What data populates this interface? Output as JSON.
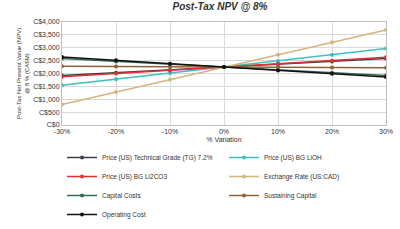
{
  "chart_data": {
    "type": "line",
    "title": "Post-Tax NPV @ 8%",
    "x_label": "% Variation",
    "y_label": "Post-Tax Net Present Value (NPV) @ 8 % (CA$M)",
    "x": [
      -30,
      -20,
      -10,
      0,
      10,
      20,
      30
    ],
    "xlim": [
      -30,
      30
    ],
    "xticks": [
      {
        "value": -30,
        "label": "-30%"
      },
      {
        "value": -20,
        "label": "-20%"
      },
      {
        "value": -10,
        "label": "-10%"
      },
      {
        "value": 0,
        "label": "0%"
      },
      {
        "value": 10,
        "label": "10%"
      },
      {
        "value": 20,
        "label": "20%"
      },
      {
        "value": 30,
        "label": "30%"
      }
    ],
    "ylim": [
      0,
      4000
    ],
    "yticks": [
      {
        "value": 0,
        "label": "C$0"
      },
      {
        "value": 500,
        "label": "C$500"
      },
      {
        "value": 1000,
        "label": "C$1,000"
      },
      {
        "value": 1500,
        "label": "C$1,500"
      },
      {
        "value": 2000,
        "label": "C$2,000"
      },
      {
        "value": 2500,
        "label": "C$2,500"
      },
      {
        "value": 3000,
        "label": "C$3,000"
      },
      {
        "value": 3500,
        "label": "C$3,500"
      },
      {
        "value": 4000,
        "label": "C$4,000"
      }
    ],
    "grid": true,
    "legend": "bottom",
    "marker": "circle",
    "series": [
      {
        "name": "Price (US) Technical Grade (TG) 7.2%",
        "color": "#3a3f4a",
        "values": [
          1920,
          2030,
          2140,
          2250,
          2360,
          2470,
          2580
        ]
      },
      {
        "name": "Price (US) BG LiOH",
        "color": "#3cbfbf",
        "values": [
          1540,
          1780,
          2010,
          2250,
          2490,
          2730,
          2970
        ]
      },
      {
        "name": "Price (US) BG Li2CO3",
        "color": "#e0302f",
        "values": [
          1870,
          2000,
          2120,
          2250,
          2380,
          2500,
          2630
        ]
      },
      {
        "name": "Exchange Rate (US:CAD)",
        "color": "#d7b27a",
        "values": [
          800,
          1280,
          1770,
          2250,
          2730,
          3210,
          3690
        ]
      },
      {
        "name": "Capital Costs",
        "color": "#2f6b5e",
        "values": [
          2580,
          2470,
          2360,
          2250,
          2140,
          2030,
          1920
        ]
      },
      {
        "name": "Sustaining Capital",
        "color": "#8b6239",
        "values": [
          2280,
          2270,
          2260,
          2250,
          2240,
          2230,
          2220
        ]
      },
      {
        "name": "Operating Cost",
        "color": "#111111",
        "values": [
          2640,
          2510,
          2380,
          2250,
          2120,
          1990,
          1860
        ]
      }
    ]
  }
}
